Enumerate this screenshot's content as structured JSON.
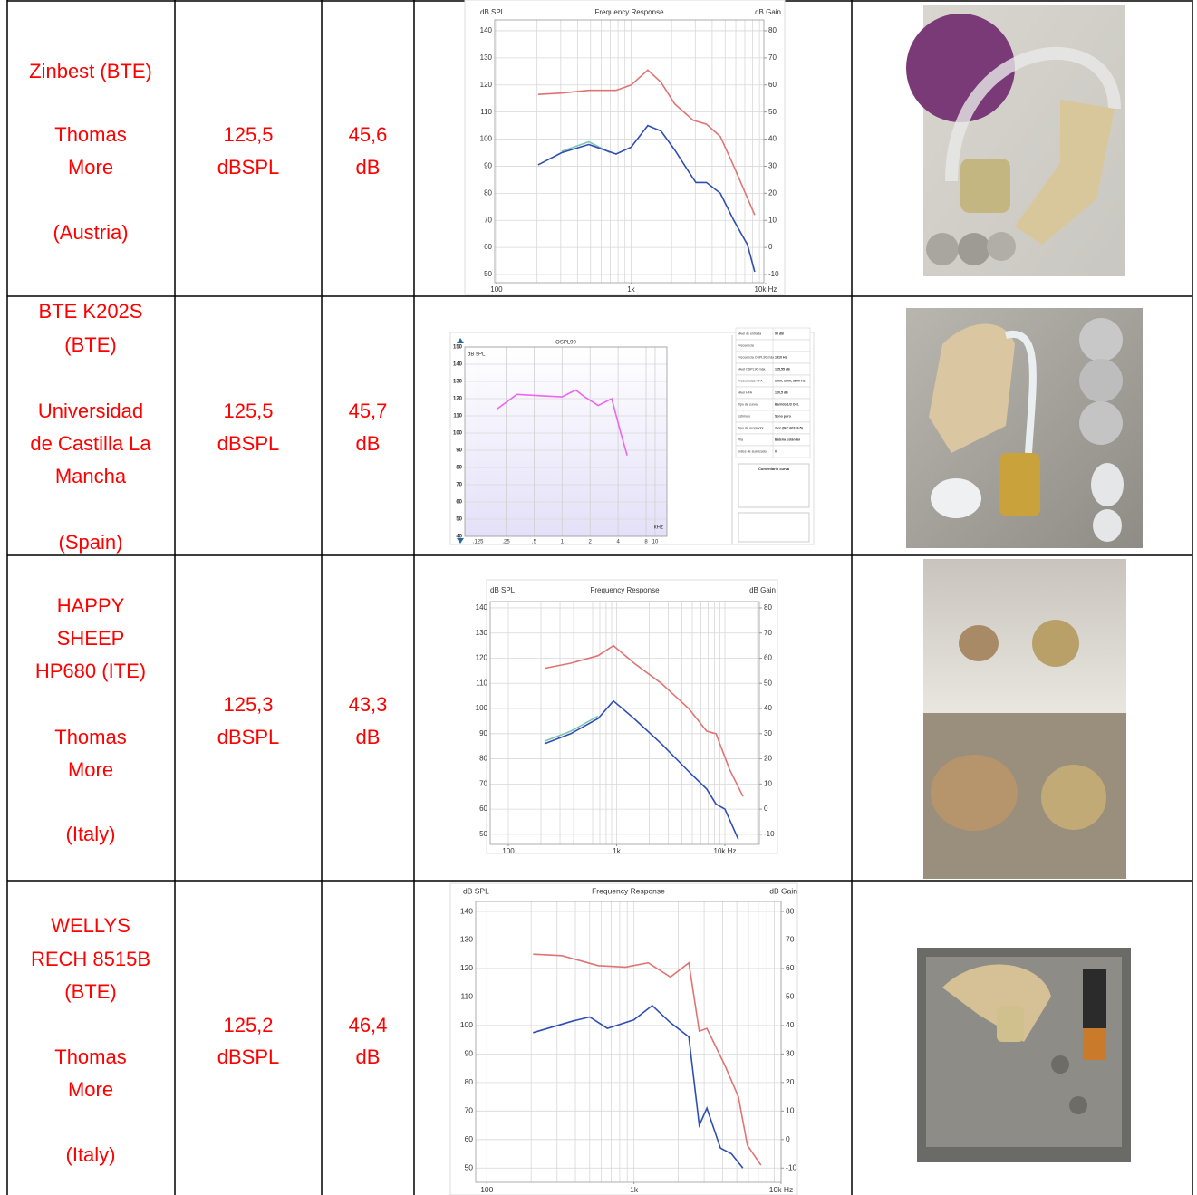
{
  "table": {
    "rows": [
      {
        "device": [
          "Zinbest (BTE)",
          "Thomas",
          "More",
          "(Austria)"
        ],
        "max_output": [
          "125,5",
          "dBSPL"
        ],
        "gain": [
          "45,6",
          "dB"
        ],
        "chart": {
          "type": "line",
          "title": "Frequency Response",
          "y_label": "dB SPL",
          "y2_label": "dB Gain",
          "log_x": true,
          "xlim": [
            97,
            9700
          ],
          "ylim": [
            47,
            144
          ],
          "y2lim": [
            -13,
            84
          ],
          "xticks": [
            100,
            {
              "value": 1000,
              "label": "1k"
            },
            {
              "value": 10000,
              "label": "10k Hz"
            }
          ],
          "xgrid": [
            100,
            200,
            300,
            400,
            500,
            600,
            700,
            800,
            900,
            1000,
            2000,
            3000,
            4000,
            5000,
            6000,
            7000,
            8000,
            9000
          ],
          "yticks": [
            50,
            60,
            70,
            80,
            90,
            100,
            110,
            120,
            130,
            140
          ],
          "y2ticks": [
            -10,
            0,
            10,
            20,
            30,
            40,
            50,
            60,
            70,
            80
          ],
          "series": [
            {
              "color": "#e07474",
              "x": [
                204,
                305,
                485,
                773,
                1000,
                1330,
                1670,
                2110,
                2880,
                3630,
                4600,
                5800,
                8300
              ],
              "values": [
                116.5,
                117,
                118,
                118,
                120,
                125.5,
                121,
                113,
                107,
                105.5,
                101,
                90,
                72
              ]
            },
            {
              "color": "#7fc4b4",
              "x": [
                305,
                485,
                700
              ],
              "values": [
                95.5,
                99,
                95
              ]
            },
            {
              "color": "#2f4fb0",
              "x": [
                204,
                305,
                485,
                773,
                1000,
                1330,
                1670,
                2110,
                2680,
                3030,
                3630,
                4600,
                5800,
                7330,
                8300
              ],
              "values": [
                90.5,
                95,
                98,
                94.5,
                97,
                105,
                103,
                96,
                88,
                84,
                84,
                80,
                70,
                61,
                51
              ]
            }
          ]
        }
      },
      {
        "device": [
          "BTE K202S",
          "(BTE)",
          "Universidad",
          "de Castilla La",
          "Mancha",
          "(Spain)"
        ],
        "max_output": [
          "125,5",
          "dBSPL"
        ],
        "gain": [
          "45,7",
          "dB"
        ],
        "chart": {
          "type": "line",
          "title": "OSPL90",
          "title_color": "#3344dd",
          "y_label": "dB sPL",
          "x_label": "kHz",
          "log_x": true,
          "xlim": [
            0.09,
            13.4
          ],
          "ylim": [
            40,
            150
          ],
          "xticks": [
            {
              "value": 0.125,
              "label": ".125"
            },
            {
              "value": 0.25,
              "label": ".25"
            },
            {
              "value": 0.5,
              "label": ".5"
            },
            1,
            2,
            4,
            8,
            10
          ],
          "yticks": [
            40,
            50,
            60,
            70,
            80,
            90,
            100,
            110,
            120,
            130,
            140,
            150
          ],
          "series": [
            {
              "color": "#ee66ee",
              "x": [
                0.2,
                0.327,
                0.64,
                1,
                1.4,
                1.75,
                2.44,
                3.42,
                4.28,
                5.0
              ],
              "values": [
                114,
                122.5,
                121.5,
                121,
                125,
                121,
                116,
                120,
                100,
                87
              ]
            }
          ]
        },
        "info": [
          {
            "label": "Nivel de entrada",
            "value": "90 dB"
          },
          {
            "label": "Frecuencia"
          },
          {
            "label": "Frecuencia OSPL90 máx.",
            "value": "1410 Hz"
          },
          {
            "label": "Nivel OSPL90 máx.",
            "value": "125,55 dB"
          },
          {
            "label": "Frecuencias HFA",
            "value": "1000, 1600, 2500 Hz"
          },
          {
            "label": "Nivel HFA",
            "value": "120,5 dB"
          },
          {
            "label": "Tipo de curva",
            "value": "Barrido 1/3 Oct."
          },
          {
            "label": "Estímulo",
            "value": "Seno puro"
          },
          {
            "label": "Tipo de acoplador",
            "value": "2-cc (IEC 60318-5)"
          },
          {
            "label": "Pila",
            "value": "Batería estándar"
          },
          {
            "label": "Índice de suavizado",
            "value": "0"
          }
        ],
        "comment": "Comentario curva"
      },
      {
        "device": [
          "HAPPY",
          "SHEEP",
          "HP680 (ITE)",
          "Thomas",
          "More",
          "(Italy)"
        ],
        "max_output": [
          "125,3",
          "dBSPL"
        ],
        "gain": [
          "43,3",
          "dB"
        ],
        "chart": {
          "type": "line",
          "title": "Frequency Response",
          "y_label": "dB SPL",
          "y2_label": "dB Gain",
          "log_x": true,
          "xlim": [
            68,
            20800
          ],
          "ylim": [
            46,
            142.5
          ],
          "y2lim": [
            -14,
            82.5
          ],
          "xticks": [
            100,
            {
              "value": 1000,
              "label": "1k"
            },
            {
              "value": 10000,
              "label": "10k Hz"
            }
          ],
          "xgrid": [
            100,
            200,
            300,
            400,
            500,
            600,
            700,
            800,
            900,
            1000,
            2000,
            3000,
            4000,
            5000,
            6000,
            7000,
            8000,
            9000,
            10000,
            20000
          ],
          "yticks": [
            50,
            60,
            70,
            80,
            90,
            100,
            110,
            120,
            130,
            140
          ],
          "y2ticks": [
            -10,
            0,
            10,
            20,
            30,
            40,
            50,
            60,
            70,
            80
          ],
          "series": [
            {
              "color": "#e07474",
              "x": [
                216,
                378,
                673,
                934,
                1450,
                2590,
                4630,
                6790,
                8280,
                11000,
                14700
              ],
              "values": [
                116,
                118,
                121,
                125,
                118,
                110,
                100,
                91,
                90,
                76,
                65
              ]
            },
            {
              "color": "#7fc4b4",
              "x": [
                216,
                378,
                673
              ],
              "values": [
                87,
                91,
                97
              ]
            },
            {
              "color": "#2f4fb0",
              "x": [
                216,
                378,
                673,
                934,
                1450,
                2590,
                4630,
                6790,
                8280,
                10000,
                13300
              ],
              "values": [
                86,
                90,
                96,
                103,
                96,
                86,
                75,
                68,
                62,
                60,
                48
              ]
            }
          ]
        }
      },
      {
        "device": [
          "WELLYS",
          "RECH 8515B",
          "(BTE)",
          "Thomas",
          "More",
          "(Italy)"
        ],
        "max_output": [
          "125,2",
          "dBSPL"
        ],
        "gain": [
          "46,4",
          "dB"
        ],
        "chart": {
          "type": "line",
          "title": "Frequency Response",
          "y_label": "dB SPL",
          "y2_label": "dB Gain",
          "log_x": true,
          "xlim": [
            84,
            10000
          ],
          "ylim": [
            45,
            143.5
          ],
          "y2lim": [
            -15,
            83.5
          ],
          "xticks": [
            100,
            {
              "value": 1000,
              "label": "1k"
            },
            {
              "value": 10000,
              "label": "10k Hz"
            }
          ],
          "xgrid": [
            100,
            200,
            300,
            400,
            500,
            600,
            700,
            800,
            900,
            1000,
            2000,
            3000,
            4000,
            5000,
            6000,
            7000,
            8000,
            9000,
            10000
          ],
          "yticks": [
            50,
            60,
            70,
            80,
            90,
            100,
            110,
            120,
            130,
            140
          ],
          "y2ticks": [
            -10,
            0,
            10,
            20,
            30,
            40,
            50,
            60,
            70,
            80
          ],
          "series": [
            {
              "color": "#e07474",
              "x": [
                206,
                324,
                570,
                876,
                1250,
                1770,
                2360,
                2780,
                3130,
                4150,
                5130,
                5900,
                7300
              ],
              "values": [
                125,
                124.5,
                121,
                120.5,
                122,
                117,
                122,
                98,
                99,
                86,
                75,
                58,
                51
              ]
            },
            {
              "color": "#2f4fb0",
              "x": [
                206,
                380,
                500,
                660,
                1000,
                1330,
                1770,
                2360,
                2780,
                3130,
                3870,
                4600,
                5500
              ],
              "values": [
                97.5,
                101.5,
                103,
                99,
                102,
                107,
                101,
                96,
                65,
                71,
                57,
                55,
                50
              ]
            }
          ]
        }
      }
    ]
  }
}
